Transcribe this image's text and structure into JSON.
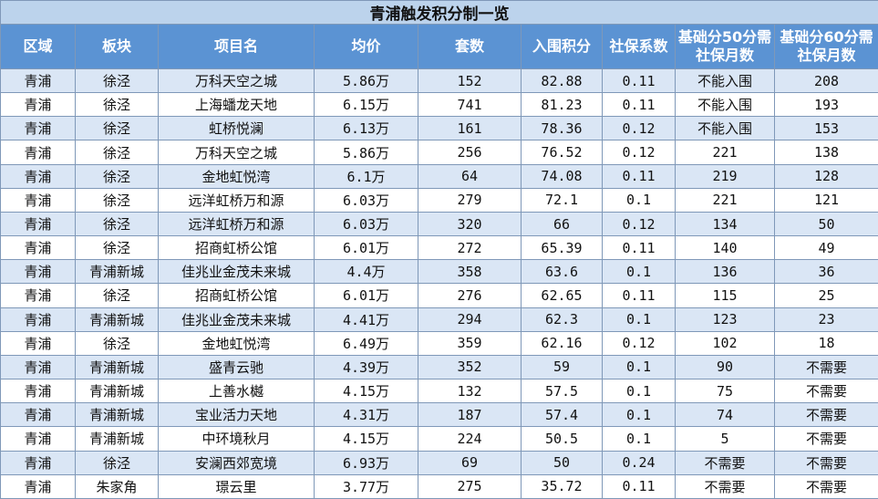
{
  "table": {
    "title": "青浦触发积分制一览",
    "headers": [
      "区域",
      "板块",
      "项目名",
      "均价",
      "套数",
      "入围积分",
      "社保系数",
      "基础分50分需社保月数",
      "基础分60分需社保月数"
    ],
    "rows": [
      [
        "青浦",
        "徐泾",
        "万科天空之城",
        "5.86万",
        "152",
        "82.88",
        "0.11",
        "不能入围",
        "208"
      ],
      [
        "青浦",
        "徐泾",
        "上海蟠龙天地",
        "6.15万",
        "741",
        "81.23",
        "0.11",
        "不能入围",
        "193"
      ],
      [
        "青浦",
        "徐泾",
        "虹桥悦澜",
        "6.13万",
        "161",
        "78.36",
        "0.12",
        "不能入围",
        "153"
      ],
      [
        "青浦",
        "徐泾",
        "万科天空之城",
        "5.86万",
        "256",
        "76.52",
        "0.12",
        "221",
        "138"
      ],
      [
        "青浦",
        "徐泾",
        "金地虹悦湾",
        "6.1万",
        "64",
        "74.08",
        "0.11",
        "219",
        "128"
      ],
      [
        "青浦",
        "徐泾",
        "远洋虹桥万和源",
        "6.03万",
        "279",
        "72.1",
        "0.1",
        "221",
        "121"
      ],
      [
        "青浦",
        "徐泾",
        "远洋虹桥万和源",
        "6.03万",
        "320",
        "66",
        "0.12",
        "134",
        "50"
      ],
      [
        "青浦",
        "徐泾",
        "招商虹桥公馆",
        "6.01万",
        "272",
        "65.39",
        "0.11",
        "140",
        "49"
      ],
      [
        "青浦",
        "青浦新城",
        "佳兆业金茂未来城",
        "4.4万",
        "358",
        "63.6",
        "0.1",
        "136",
        "36"
      ],
      [
        "青浦",
        "徐泾",
        "招商虹桥公馆",
        "6.01万",
        "276",
        "62.65",
        "0.11",
        "115",
        "25"
      ],
      [
        "青浦",
        "青浦新城",
        "佳兆业金茂未来城",
        "4.41万",
        "294",
        "62.3",
        "0.1",
        "123",
        "23"
      ],
      [
        "青浦",
        "徐泾",
        "金地虹悦湾",
        "6.49万",
        "359",
        "62.16",
        "0.12",
        "102",
        "18"
      ],
      [
        "青浦",
        "青浦新城",
        "盛青云驰",
        "4.39万",
        "352",
        "59",
        "0.1",
        "90",
        "不需要"
      ],
      [
        "青浦",
        "青浦新城",
        "上善水樾",
        "4.15万",
        "132",
        "57.5",
        "0.1",
        "75",
        "不需要"
      ],
      [
        "青浦",
        "青浦新城",
        "宝业活力天地",
        "4.31万",
        "187",
        "57.4",
        "0.1",
        "74",
        "不需要"
      ],
      [
        "青浦",
        "青浦新城",
        "中环境秋月",
        "4.15万",
        "224",
        "50.5",
        "0.1",
        "5",
        "不需要"
      ],
      [
        "青浦",
        "徐泾",
        "安澜西郊宽境",
        "6.93万",
        "69",
        "50",
        "0.24",
        "不需要",
        "不需要"
      ],
      [
        "青浦",
        "朱家角",
        "璟云里",
        "3.77万",
        "275",
        "35.72",
        "0.11",
        "不需要",
        "不需要"
      ]
    ]
  },
  "colors": {
    "title_bg": "#bcd3ec",
    "header_bg": "#5b93d3",
    "row_alt_bg": "#dae6f5",
    "row_bg": "#ffffff",
    "grid": "#7f98b8"
  }
}
